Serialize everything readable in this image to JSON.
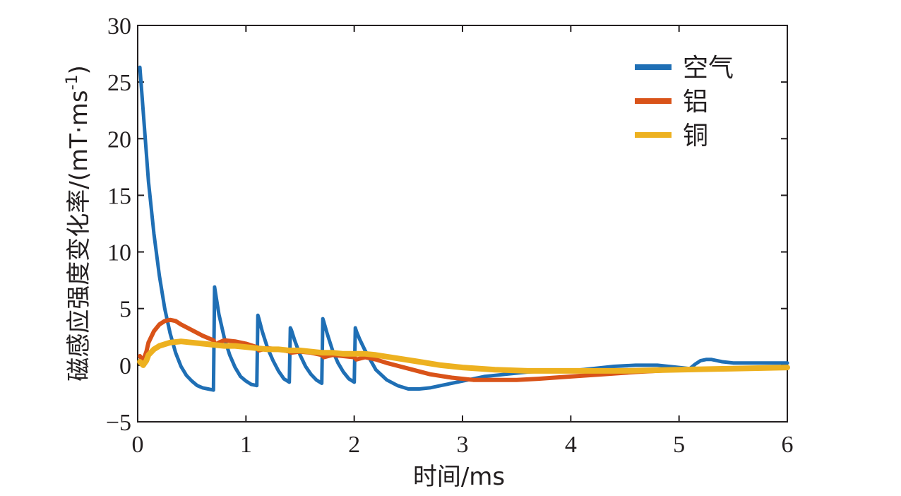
{
  "chart_data": {
    "type": "line",
    "title": "",
    "xlabel": "时间/ms",
    "ylabel_main": "磁感应强度变化率/(mT·ms",
    "ylabel_sup": "-1",
    "ylabel_close": ")",
    "xlim": [
      0,
      6
    ],
    "ylim": [
      -5,
      30
    ],
    "xticks": [
      "0",
      "1",
      "2",
      "3",
      "4",
      "5",
      "6"
    ],
    "yticks": [
      "−5",
      "0",
      "5",
      "10",
      "15",
      "20",
      "25",
      "30"
    ],
    "grid": false,
    "legend_position": "top-right",
    "series": [
      {
        "name": "空气",
        "color": "#1f6fb5",
        "x": [
          0.02,
          0.05,
          0.1,
          0.15,
          0.2,
          0.25,
          0.3,
          0.35,
          0.4,
          0.45,
          0.5,
          0.55,
          0.6,
          0.65,
          0.7,
          0.71,
          0.72,
          0.75,
          0.8,
          0.85,
          0.9,
          0.95,
          1.0,
          1.05,
          1.1,
          1.11,
          1.12,
          1.15,
          1.2,
          1.25,
          1.3,
          1.35,
          1.4,
          1.41,
          1.42,
          1.45,
          1.5,
          1.55,
          1.6,
          1.65,
          1.7,
          1.71,
          1.72,
          1.75,
          1.8,
          1.85,
          1.9,
          1.95,
          2.0,
          2.01,
          2.02,
          2.05,
          2.1,
          2.2,
          2.3,
          2.4,
          2.5,
          2.6,
          2.7,
          2.8,
          3.0,
          3.2,
          3.4,
          3.6,
          3.8,
          4.0,
          4.2,
          4.4,
          4.6,
          4.8,
          5.0,
          5.1,
          5.15,
          5.2,
          5.25,
          5.3,
          5.4,
          5.5,
          5.6,
          5.8,
          6.0
        ],
        "y": [
          26.3,
          22.5,
          16.2,
          11.6,
          7.9,
          5.0,
          2.8,
          1.1,
          -0.1,
          -0.9,
          -1.4,
          -1.8,
          -2.0,
          -2.1,
          -2.2,
          6.9,
          6.3,
          4.5,
          2.4,
          0.9,
          -0.2,
          -1.0,
          -1.4,
          -1.7,
          -1.8,
          4.4,
          4.1,
          3.0,
          1.5,
          0.4,
          -0.5,
          -1.2,
          -1.5,
          3.3,
          3.1,
          2.2,
          0.9,
          -0.1,
          -0.8,
          -1.3,
          -1.6,
          4.1,
          3.8,
          2.8,
          1.3,
          0.2,
          -0.6,
          -1.2,
          -1.5,
          3.3,
          3.0,
          2.3,
          1.3,
          -0.4,
          -1.3,
          -1.8,
          -2.1,
          -2.1,
          -2.0,
          -1.8,
          -1.4,
          -1.0,
          -0.8,
          -0.6,
          -0.5,
          -0.5,
          -0.3,
          -0.1,
          0.0,
          0.0,
          -0.2,
          -0.3,
          0.1,
          0.4,
          0.5,
          0.5,
          0.3,
          0.2,
          0.2,
          0.2,
          0.2
        ]
      },
      {
        "name": "铝",
        "color": "#d95319",
        "x": [
          0.02,
          0.05,
          0.08,
          0.1,
          0.15,
          0.2,
          0.25,
          0.3,
          0.35,
          0.4,
          0.5,
          0.6,
          0.7,
          0.72,
          0.75,
          0.8,
          0.9,
          1.0,
          1.1,
          1.12,
          1.2,
          1.3,
          1.4,
          1.42,
          1.5,
          1.6,
          1.7,
          1.72,
          1.8,
          1.9,
          2.0,
          2.02,
          2.1,
          2.2,
          2.3,
          2.5,
          2.7,
          2.9,
          3.1,
          3.3,
          3.5,
          3.7,
          4.0,
          4.3,
          4.6,
          5.0,
          5.5,
          6.0
        ],
        "y": [
          0.8,
          0.4,
          1.2,
          2.0,
          3.0,
          3.6,
          3.9,
          4.0,
          3.9,
          3.6,
          3.1,
          2.6,
          2.2,
          1.8,
          2.0,
          2.2,
          2.1,
          1.9,
          1.6,
          1.3,
          1.5,
          1.4,
          1.2,
          1.1,
          1.2,
          1.1,
          0.9,
          0.7,
          0.9,
          0.8,
          0.7,
          0.5,
          0.7,
          0.5,
          0.2,
          -0.3,
          -0.8,
          -1.1,
          -1.3,
          -1.3,
          -1.3,
          -1.2,
          -1.0,
          -0.8,
          -0.6,
          -0.4,
          -0.3,
          -0.2
        ]
      },
      {
        "name": "铜",
        "color": "#edb120",
        "x": [
          0.02,
          0.05,
          0.08,
          0.1,
          0.15,
          0.2,
          0.3,
          0.4,
          0.5,
          0.6,
          0.7,
          0.8,
          0.9,
          1.0,
          1.1,
          1.2,
          1.3,
          1.4,
          1.5,
          1.6,
          1.7,
          1.8,
          1.9,
          2.0,
          2.1,
          2.2,
          2.4,
          2.6,
          2.8,
          3.0,
          3.3,
          3.6,
          4.0,
          4.5,
          5.0,
          5.5,
          6.0
        ],
        "y": [
          0.3,
          0.0,
          0.4,
          0.9,
          1.4,
          1.7,
          2.0,
          2.1,
          2.0,
          1.9,
          1.8,
          1.7,
          1.7,
          1.6,
          1.5,
          1.4,
          1.4,
          1.3,
          1.3,
          1.2,
          1.1,
          1.1,
          1.0,
          1.0,
          1.0,
          0.9,
          0.6,
          0.3,
          0.0,
          -0.2,
          -0.4,
          -0.5,
          -0.5,
          -0.5,
          -0.4,
          -0.3,
          -0.2
        ]
      }
    ]
  }
}
